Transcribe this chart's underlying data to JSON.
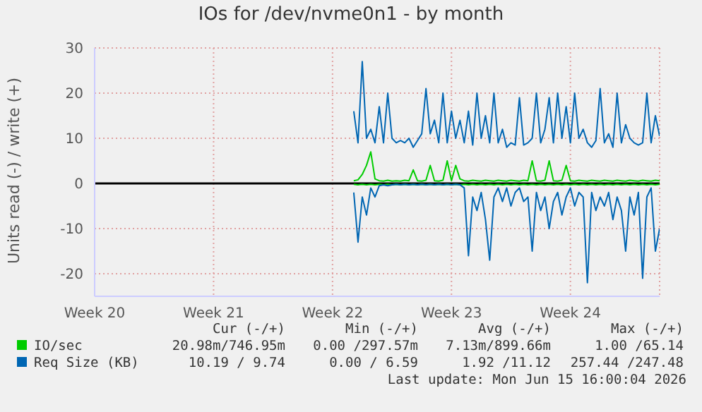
{
  "chart_data": {
    "type": "line",
    "title": "IOs for /dev/nvme0n1 - by month",
    "ylabel": "Units read (-) / write (+)",
    "categories": [
      "Week 20",
      null,
      null,
      null,
      null,
      null,
      null,
      null,
      null,
      null,
      null,
      null,
      null,
      null,
      null,
      null,
      null,
      null,
      null,
      null,
      null,
      null,
      null,
      null,
      null,
      null,
      null,
      null,
      "Week 21",
      null,
      null,
      null,
      null,
      null,
      null,
      null,
      null,
      null,
      null,
      null,
      null,
      null,
      null,
      null,
      null,
      null,
      null,
      null,
      null,
      null,
      null,
      null,
      null,
      null,
      null,
      null,
      "Week 22",
      null,
      null,
      null,
      null,
      null,
      null,
      null,
      null,
      null,
      null,
      null,
      null,
      null,
      null,
      null,
      null,
      null,
      null,
      null,
      null,
      null,
      null,
      null,
      null,
      null,
      null,
      null,
      "Week 23",
      null,
      null,
      null,
      null,
      null,
      null,
      null,
      null,
      null,
      null,
      null,
      null,
      null,
      null,
      null,
      null,
      null,
      null,
      null,
      null,
      null,
      null,
      null,
      null,
      null,
      null,
      null,
      "Week 24",
      null,
      null,
      null,
      null,
      null,
      null,
      null,
      null,
      null,
      null,
      null,
      null,
      null,
      null,
      null,
      null,
      null,
      null,
      null,
      null,
      null
    ],
    "series": [
      {
        "name": "IO/sec",
        "color": "#00cc00",
        "values": [
          null,
          null,
          null,
          null,
          null,
          null,
          null,
          null,
          null,
          null,
          null,
          null,
          null,
          null,
          null,
          null,
          null,
          null,
          null,
          null,
          null,
          null,
          null,
          null,
          null,
          null,
          null,
          null,
          null,
          null,
          null,
          null,
          null,
          null,
          null,
          null,
          null,
          null,
          null,
          null,
          null,
          null,
          null,
          null,
          null,
          null,
          null,
          null,
          null,
          null,
          null,
          null,
          null,
          null,
          null,
          null,
          null,
          null,
          null,
          null,
          null,
          0.6,
          0.8,
          2,
          4,
          7,
          1,
          0.6,
          0.5,
          0.7,
          0.5,
          0.6,
          0.5,
          0.7,
          0.6,
          3,
          0.6,
          0.5,
          0.7,
          4,
          0.6,
          0.5,
          0.7,
          5,
          0.6,
          4,
          1,
          0.6,
          0.5,
          0.7,
          0.6,
          0.5,
          0.7,
          0.6,
          0.5,
          0.7,
          0.6,
          0.5,
          0.7,
          0.6,
          0.5,
          0.7,
          0.6,
          5,
          0.6,
          0.5,
          0.7,
          5,
          0.6,
          0.5,
          0.7,
          4,
          0.6,
          0.5,
          0.7,
          0.6,
          0.5,
          0.7,
          0.6,
          0.5,
          0.7,
          0.6,
          0.5,
          0.7,
          0.6,
          0.5,
          0.7,
          0.6,
          0.5,
          0.7,
          0.6,
          0.5,
          0.7,
          0.6
        ]
      },
      {
        "color": "#00cc00",
        "values": [
          null,
          null,
          null,
          null,
          null,
          null,
          null,
          null,
          null,
          null,
          null,
          null,
          null,
          null,
          null,
          null,
          null,
          null,
          null,
          null,
          null,
          null,
          null,
          null,
          null,
          null,
          null,
          null,
          null,
          null,
          null,
          null,
          null,
          null,
          null,
          null,
          null,
          null,
          null,
          null,
          null,
          null,
          null,
          null,
          null,
          null,
          null,
          null,
          null,
          null,
          null,
          null,
          null,
          null,
          null,
          null,
          null,
          null,
          null,
          null,
          null,
          -0.2,
          -0.3,
          -0.2,
          -0.3,
          -0.2,
          -0.3,
          -0.2,
          -0.3,
          -0.2,
          -0.3,
          -0.2,
          -0.3,
          -0.2,
          -0.3,
          -0.2,
          -0.3,
          -0.2,
          -0.3,
          -0.2,
          -0.3,
          -0.2,
          -0.3,
          -0.2,
          -0.3,
          -0.2,
          -0.3,
          -0.2,
          -0.3,
          -0.2,
          -0.3,
          -0.2,
          -0.3,
          -0.2,
          -0.3,
          -0.2,
          -0.3,
          -0.2,
          -0.3,
          -0.2,
          -0.3,
          -0.2,
          -0.3,
          -0.2,
          -0.3,
          -0.2,
          -0.3,
          -0.2,
          -0.3,
          -0.2,
          -0.3,
          -0.2,
          -0.3,
          -0.2,
          -0.3,
          -0.2,
          -0.3,
          -0.2,
          -0.3,
          -0.2,
          -0.3,
          -0.2,
          -0.3,
          -0.2,
          -0.3,
          -0.2,
          -0.3,
          -0.2,
          -0.3,
          -0.2,
          -0.3,
          -0.2,
          -0.3,
          -0.2
        ]
      },
      {
        "name": "Req Size (KB)",
        "color": "#0066b3",
        "values": [
          null,
          null,
          null,
          null,
          null,
          null,
          null,
          null,
          null,
          null,
          null,
          null,
          null,
          null,
          null,
          null,
          null,
          null,
          null,
          null,
          null,
          null,
          null,
          null,
          null,
          null,
          null,
          null,
          null,
          null,
          null,
          null,
          null,
          null,
          null,
          null,
          null,
          null,
          null,
          null,
          null,
          null,
          null,
          null,
          null,
          null,
          null,
          null,
          null,
          null,
          null,
          null,
          null,
          null,
          null,
          null,
          null,
          null,
          null,
          null,
          null,
          16,
          9,
          27,
          10,
          12,
          9,
          17,
          9,
          20,
          10,
          9,
          9.5,
          9,
          10,
          8,
          9.5,
          11,
          21,
          11,
          14,
          9,
          20,
          9,
          16,
          10,
          14,
          9,
          16,
          8.5,
          20,
          10,
          15,
          9,
          20,
          9,
          12,
          8,
          9,
          8.5,
          19,
          8.5,
          9,
          10,
          20,
          9,
          12,
          19,
          9,
          20,
          10,
          17,
          9,
          20,
          10,
          12,
          9,
          8,
          9.5,
          21,
          9,
          11,
          8,
          20,
          9,
          13,
          10,
          9,
          8.5,
          9,
          20,
          9,
          15,
          10.5
        ]
      },
      {
        "color": "#0066b3",
        "values": [
          null,
          null,
          null,
          null,
          null,
          null,
          null,
          null,
          null,
          null,
          null,
          null,
          null,
          null,
          null,
          null,
          null,
          null,
          null,
          null,
          null,
          null,
          null,
          null,
          null,
          null,
          null,
          null,
          null,
          null,
          null,
          null,
          null,
          null,
          null,
          null,
          null,
          null,
          null,
          null,
          null,
          null,
          null,
          null,
          null,
          null,
          null,
          null,
          null,
          null,
          null,
          null,
          null,
          null,
          null,
          null,
          null,
          null,
          null,
          null,
          null,
          -2,
          -13,
          -3,
          -7,
          -1,
          -3,
          -0.5,
          -0.3,
          -0.5,
          -0.3,
          -0.2,
          -0.3,
          -0.2,
          -0.3,
          -0.2,
          -0.3,
          -0.2,
          -0.3,
          -0.2,
          -0.3,
          -0.2,
          -0.3,
          -0.2,
          -0.3,
          -0.2,
          -0.3,
          -1,
          -16,
          -3,
          -6,
          -2,
          -8,
          -17,
          -3,
          -1,
          -4,
          -1,
          -5,
          -2,
          -1,
          -4,
          -3,
          -15,
          -2,
          -6,
          -3,
          -10,
          -4,
          -2,
          -7,
          -3,
          -1,
          -5,
          -2,
          -3,
          -22,
          -2,
          -6,
          -3,
          -5,
          -2,
          -8,
          -3,
          -6,
          -15,
          -3,
          -7,
          -2,
          -21,
          -3,
          -1,
          -15,
          -10
        ]
      }
    ],
    "ylim": [
      -25,
      30
    ],
    "yticks": [
      -20,
      -10,
      0,
      10,
      20,
      30
    ],
    "ref_lines": [
      {
        "axis": "y",
        "value": 0,
        "color": "#000000"
      }
    ],
    "grid": true,
    "legend": "bottom",
    "annotations": [
      "Cur (-/+)",
      "Min (-/+)",
      "Avg (-/+)",
      "Max (-/+)",
      "20.98m/746.95m",
      "0.00 /297.57m",
      "7.13m/899.66m",
      "1.00 /65.14",
      "10.19 / 9.74",
      "0.00 / 6.59",
      "1.92 /11.12",
      "257.44 /247.48",
      "Last update: Mon Jun 15 16:00:04 2026"
    ]
  }
}
